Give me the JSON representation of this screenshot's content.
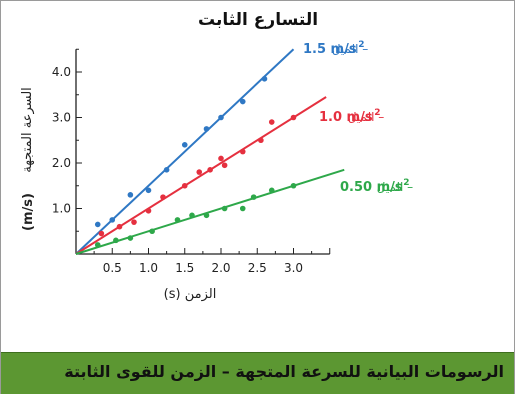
{
  "chart_data": {
    "type": "scatter",
    "title": "التسارع الثابت",
    "xlabel": "الزمن (s)",
    "ylabel_text": "السرعة المتجهة",
    "ylabel_unit": "(m/s)",
    "xlim": [
      0,
      3.5
    ],
    "ylim": [
      0,
      4.5
    ],
    "x_ticks": [
      0.5,
      1.0,
      1.5,
      2.0,
      2.5,
      3.0
    ],
    "x_tick_labels": [
      "0.5",
      "1.0",
      "1.5",
      "2.0",
      "2.5",
      "3.0"
    ],
    "y_ticks": [
      1.0,
      2.0,
      3.0,
      4.0
    ],
    "y_tick_labels": [
      "1.0",
      "2.0",
      "3.0",
      "4.0"
    ],
    "grid": false,
    "series": [
      {
        "name": "1.5 m/s² – الميل",
        "label_value": "1.5 m/s",
        "label_exp": "2",
        "label_word": "– الميل",
        "color": "#2f78c4",
        "slope": 1.5,
        "line_x": [
          0,
          3.0
        ],
        "points": [
          [
            0.3,
            0.65
          ],
          [
            0.5,
            0.75
          ],
          [
            0.75,
            1.3
          ],
          [
            1.0,
            1.4
          ],
          [
            1.25,
            1.85
          ],
          [
            1.5,
            2.4
          ],
          [
            1.8,
            2.75
          ],
          [
            2.0,
            3.0
          ],
          [
            2.3,
            3.35
          ],
          [
            2.6,
            3.85
          ]
        ]
      },
      {
        "name": "1.0 m/s² – الميل",
        "label_value": "1.0 m/s",
        "label_exp": "2",
        "label_word": "– الميل",
        "color": "#e5303f",
        "slope": 1.0,
        "line_x": [
          0,
          3.45
        ],
        "points": [
          [
            0.35,
            0.45
          ],
          [
            0.6,
            0.6
          ],
          [
            0.8,
            0.7
          ],
          [
            1.0,
            0.95
          ],
          [
            1.2,
            1.25
          ],
          [
            1.5,
            1.5
          ],
          [
            1.7,
            1.8
          ],
          [
            1.85,
            1.85
          ],
          [
            2.0,
            2.1
          ],
          [
            2.05,
            1.95
          ],
          [
            2.3,
            2.25
          ],
          [
            2.55,
            2.5
          ],
          [
            2.7,
            2.9
          ],
          [
            3.0,
            3.0
          ]
        ]
      },
      {
        "name": "0.50 m/s² – الميل",
        "label_value": "0.50 m/s",
        "label_exp": "2",
        "label_word": "– الميل",
        "color": "#2ea84a",
        "slope": 0.5,
        "line_x": [
          0,
          3.7
        ],
        "points": [
          [
            0.3,
            0.2
          ],
          [
            0.55,
            0.3
          ],
          [
            0.75,
            0.35
          ],
          [
            1.05,
            0.5
          ],
          [
            1.4,
            0.75
          ],
          [
            1.6,
            0.85
          ],
          [
            1.8,
            0.85
          ],
          [
            2.05,
            1.0
          ],
          [
            2.3,
            1.0
          ],
          [
            2.45,
            1.25
          ],
          [
            2.7,
            1.4
          ],
          [
            3.0,
            1.5
          ]
        ]
      }
    ]
  },
  "footer": {
    "caption": "الرسومات البيانية للسرعة المتجهة – الزمن للقوى الثابتة",
    "background": "#5c9732"
  }
}
